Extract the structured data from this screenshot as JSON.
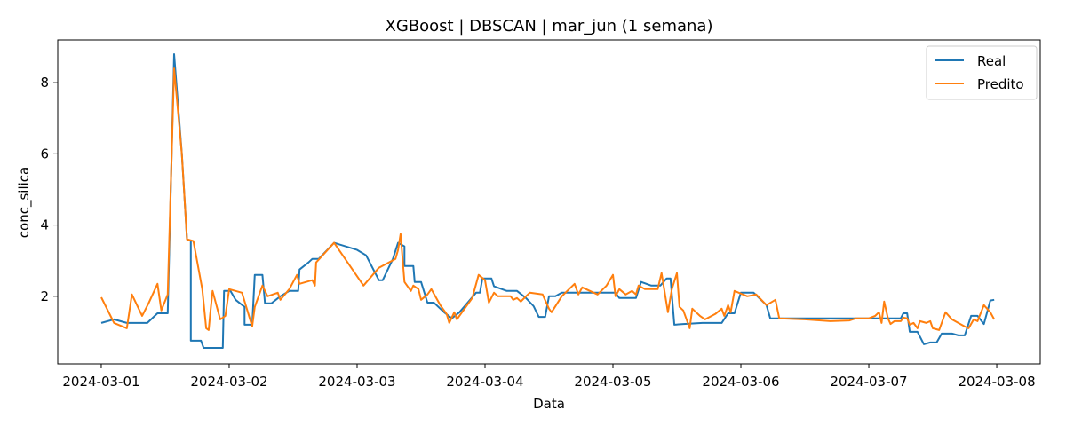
{
  "chart_data": {
    "type": "line",
    "title": "XGBoost | DBSCAN | mar_jun (1 semana)",
    "xlabel": "Data",
    "ylabel": "conc_silica",
    "x_tick_labels": [
      "2024-03-01",
      "2024-03-02",
      "2024-03-03",
      "2024-03-04",
      "2024-03-05",
      "2024-03-06",
      "2024-03-07",
      "2024-03-08"
    ],
    "x_tick_values": [
      0,
      1,
      2,
      3,
      4,
      5,
      6,
      7
    ],
    "y_ticks": [
      2,
      4,
      6,
      8
    ],
    "xlim": [
      -0.34,
      7.34
    ],
    "ylim": [
      0.1,
      9.2
    ],
    "legend_position": "top-right",
    "series": [
      {
        "name": "Real",
        "color": "#1f77b4",
        "points": [
          [
            0.0,
            1.25
          ],
          [
            0.1,
            1.35
          ],
          [
            0.2,
            1.25
          ],
          [
            0.36,
            1.25
          ],
          [
            0.44,
            1.52
          ],
          [
            0.52,
            1.52
          ],
          [
            0.57,
            8.8
          ],
          [
            0.63,
            6.0
          ],
          [
            0.67,
            3.6
          ],
          [
            0.7,
            3.55
          ],
          [
            0.7,
            0.75
          ],
          [
            0.78,
            0.75
          ],
          [
            0.8,
            0.55
          ],
          [
            0.95,
            0.55
          ],
          [
            0.96,
            2.15
          ],
          [
            1.01,
            2.15
          ],
          [
            1.05,
            1.9
          ],
          [
            1.12,
            1.7
          ],
          [
            1.12,
            1.2
          ],
          [
            1.18,
            1.2
          ],
          [
            1.2,
            2.6
          ],
          [
            1.26,
            2.6
          ],
          [
            1.28,
            1.8
          ],
          [
            1.33,
            1.8
          ],
          [
            1.4,
            2.0
          ],
          [
            1.47,
            2.15
          ],
          [
            1.54,
            2.15
          ],
          [
            1.55,
            2.75
          ],
          [
            1.62,
            2.95
          ],
          [
            1.65,
            3.05
          ],
          [
            1.7,
            3.05
          ],
          [
            1.82,
            3.5
          ],
          [
            2.0,
            3.3
          ],
          [
            2.07,
            3.15
          ],
          [
            2.17,
            2.45
          ],
          [
            2.2,
            2.45
          ],
          [
            2.28,
            3.05
          ],
          [
            2.32,
            3.5
          ],
          [
            2.37,
            3.4
          ],
          [
            2.37,
            2.85
          ],
          [
            2.44,
            2.85
          ],
          [
            2.45,
            2.4
          ],
          [
            2.5,
            2.4
          ],
          [
            2.55,
            1.82
          ],
          [
            2.6,
            1.82
          ],
          [
            2.68,
            1.55
          ],
          [
            2.74,
            1.38
          ],
          [
            2.8,
            1.55
          ],
          [
            2.86,
            1.8
          ],
          [
            2.93,
            2.1
          ],
          [
            2.96,
            2.1
          ],
          [
            2.98,
            2.5
          ],
          [
            3.05,
            2.5
          ],
          [
            3.07,
            2.28
          ],
          [
            3.17,
            2.15
          ],
          [
            3.25,
            2.15
          ],
          [
            3.32,
            1.95
          ],
          [
            3.38,
            1.72
          ],
          [
            3.42,
            1.42
          ],
          [
            3.47,
            1.42
          ],
          [
            3.5,
            2.0
          ],
          [
            3.55,
            2.0
          ],
          [
            3.6,
            2.1
          ],
          [
            3.67,
            2.1
          ],
          [
            3.75,
            2.1
          ],
          [
            3.85,
            2.1
          ],
          [
            3.95,
            2.1
          ],
          [
            4.02,
            2.1
          ],
          [
            4.05,
            1.95
          ],
          [
            4.1,
            1.95
          ],
          [
            4.18,
            1.95
          ],
          [
            4.22,
            2.4
          ],
          [
            4.3,
            2.3
          ],
          [
            4.37,
            2.3
          ],
          [
            4.42,
            2.5
          ],
          [
            4.45,
            2.5
          ],
          [
            4.48,
            1.2
          ],
          [
            4.55,
            1.22
          ],
          [
            4.7,
            1.25
          ],
          [
            4.85,
            1.25
          ],
          [
            4.9,
            1.52
          ],
          [
            4.95,
            1.52
          ],
          [
            5.0,
            2.1
          ],
          [
            5.1,
            2.1
          ],
          [
            5.2,
            1.75
          ],
          [
            5.23,
            1.38
          ],
          [
            5.3,
            1.38
          ],
          [
            5.5,
            1.38
          ],
          [
            5.75,
            1.38
          ],
          [
            6.0,
            1.38
          ],
          [
            6.15,
            1.38
          ],
          [
            6.25,
            1.38
          ],
          [
            6.27,
            1.52
          ],
          [
            6.3,
            1.52
          ],
          [
            6.32,
            1.0
          ],
          [
            6.38,
            1.0
          ],
          [
            6.43,
            0.65
          ],
          [
            6.48,
            0.7
          ],
          [
            6.53,
            0.7
          ],
          [
            6.57,
            0.95
          ],
          [
            6.65,
            0.95
          ],
          [
            6.7,
            0.9
          ],
          [
            6.75,
            0.9
          ],
          [
            6.8,
            1.45
          ],
          [
            6.85,
            1.45
          ],
          [
            6.9,
            1.22
          ],
          [
            6.95,
            1.88
          ],
          [
            6.98,
            1.9
          ]
        ]
      },
      {
        "name": "Predito",
        "color": "#ff7f0e",
        "points": [
          [
            0.0,
            1.97
          ],
          [
            0.1,
            1.25
          ],
          [
            0.2,
            1.1
          ],
          [
            0.24,
            2.05
          ],
          [
            0.32,
            1.45
          ],
          [
            0.37,
            1.8
          ],
          [
            0.44,
            2.35
          ],
          [
            0.47,
            1.6
          ],
          [
            0.52,
            2.05
          ],
          [
            0.57,
            8.4
          ],
          [
            0.63,
            6.0
          ],
          [
            0.67,
            3.6
          ],
          [
            0.72,
            3.55
          ],
          [
            0.79,
            2.2
          ],
          [
            0.82,
            1.1
          ],
          [
            0.84,
            1.05
          ],
          [
            0.85,
            1.45
          ],
          [
            0.87,
            2.15
          ],
          [
            0.93,
            1.35
          ],
          [
            0.97,
            1.45
          ],
          [
            1.0,
            2.2
          ],
          [
            1.1,
            2.1
          ],
          [
            1.18,
            1.15
          ],
          [
            1.2,
            1.7
          ],
          [
            1.26,
            2.3
          ],
          [
            1.3,
            2.0
          ],
          [
            1.38,
            2.1
          ],
          [
            1.4,
            1.9
          ],
          [
            1.47,
            2.2
          ],
          [
            1.53,
            2.6
          ],
          [
            1.55,
            2.35
          ],
          [
            1.65,
            2.45
          ],
          [
            1.67,
            2.3
          ],
          [
            1.68,
            2.95
          ],
          [
            1.82,
            3.5
          ],
          [
            2.05,
            2.3
          ],
          [
            2.17,
            2.8
          ],
          [
            2.3,
            3.05
          ],
          [
            2.32,
            3.3
          ],
          [
            2.34,
            3.75
          ],
          [
            2.37,
            2.4
          ],
          [
            2.42,
            2.15
          ],
          [
            2.44,
            2.3
          ],
          [
            2.48,
            2.2
          ],
          [
            2.5,
            1.9
          ],
          [
            2.55,
            2.05
          ],
          [
            2.58,
            2.2
          ],
          [
            2.65,
            1.75
          ],
          [
            2.7,
            1.5
          ],
          [
            2.72,
            1.25
          ],
          [
            2.76,
            1.55
          ],
          [
            2.78,
            1.35
          ],
          [
            2.9,
            1.95
          ],
          [
            2.95,
            2.6
          ],
          [
            3.0,
            2.45
          ],
          [
            3.03,
            1.82
          ],
          [
            3.07,
            2.1
          ],
          [
            3.1,
            2.0
          ],
          [
            3.17,
            2.0
          ],
          [
            3.2,
            2.0
          ],
          [
            3.22,
            1.9
          ],
          [
            3.25,
            1.95
          ],
          [
            3.28,
            1.85
          ],
          [
            3.32,
            2.0
          ],
          [
            3.35,
            2.1
          ],
          [
            3.45,
            2.05
          ],
          [
            3.5,
            1.65
          ],
          [
            3.52,
            1.55
          ],
          [
            3.6,
            2.0
          ],
          [
            3.7,
            2.35
          ],
          [
            3.73,
            2.05
          ],
          [
            3.76,
            2.25
          ],
          [
            3.85,
            2.1
          ],
          [
            3.88,
            2.05
          ],
          [
            3.95,
            2.3
          ],
          [
            4.0,
            2.6
          ],
          [
            4.02,
            2.0
          ],
          [
            4.05,
            2.2
          ],
          [
            4.1,
            2.05
          ],
          [
            4.15,
            2.15
          ],
          [
            4.18,
            2.05
          ],
          [
            4.2,
            2.3
          ],
          [
            4.25,
            2.2
          ],
          [
            4.3,
            2.2
          ],
          [
            4.35,
            2.2
          ],
          [
            4.38,
            2.65
          ],
          [
            4.43,
            1.55
          ],
          [
            4.46,
            2.2
          ],
          [
            4.5,
            2.65
          ],
          [
            4.52,
            1.7
          ],
          [
            4.55,
            1.6
          ],
          [
            4.6,
            1.1
          ],
          [
            4.62,
            1.65
          ],
          [
            4.68,
            1.45
          ],
          [
            4.72,
            1.35
          ],
          [
            4.8,
            1.5
          ],
          [
            4.85,
            1.65
          ],
          [
            4.87,
            1.45
          ],
          [
            4.9,
            1.75
          ],
          [
            4.92,
            1.55
          ],
          [
            4.95,
            2.15
          ],
          [
            5.05,
            2.0
          ],
          [
            5.12,
            2.05
          ],
          [
            5.2,
            1.75
          ],
          [
            5.27,
            1.9
          ],
          [
            5.3,
            1.38
          ],
          [
            5.5,
            1.35
          ],
          [
            5.7,
            1.3
          ],
          [
            5.85,
            1.32
          ],
          [
            5.9,
            1.38
          ],
          [
            6.0,
            1.38
          ],
          [
            6.05,
            1.45
          ],
          [
            6.08,
            1.55
          ],
          [
            6.1,
            1.25
          ],
          [
            6.12,
            1.85
          ],
          [
            6.15,
            1.38
          ],
          [
            6.17,
            1.22
          ],
          [
            6.2,
            1.3
          ],
          [
            6.25,
            1.3
          ],
          [
            6.27,
            1.4
          ],
          [
            6.3,
            1.38
          ],
          [
            6.32,
            1.2
          ],
          [
            6.35,
            1.25
          ],
          [
            6.38,
            1.1
          ],
          [
            6.4,
            1.3
          ],
          [
            6.45,
            1.25
          ],
          [
            6.48,
            1.3
          ],
          [
            6.5,
            1.1
          ],
          [
            6.55,
            1.05
          ],
          [
            6.6,
            1.55
          ],
          [
            6.65,
            1.35
          ],
          [
            6.7,
            1.25
          ],
          [
            6.75,
            1.15
          ],
          [
            6.78,
            1.1
          ],
          [
            6.82,
            1.35
          ],
          [
            6.85,
            1.3
          ],
          [
            6.9,
            1.75
          ],
          [
            6.95,
            1.55
          ],
          [
            6.98,
            1.35
          ]
        ]
      }
    ]
  }
}
